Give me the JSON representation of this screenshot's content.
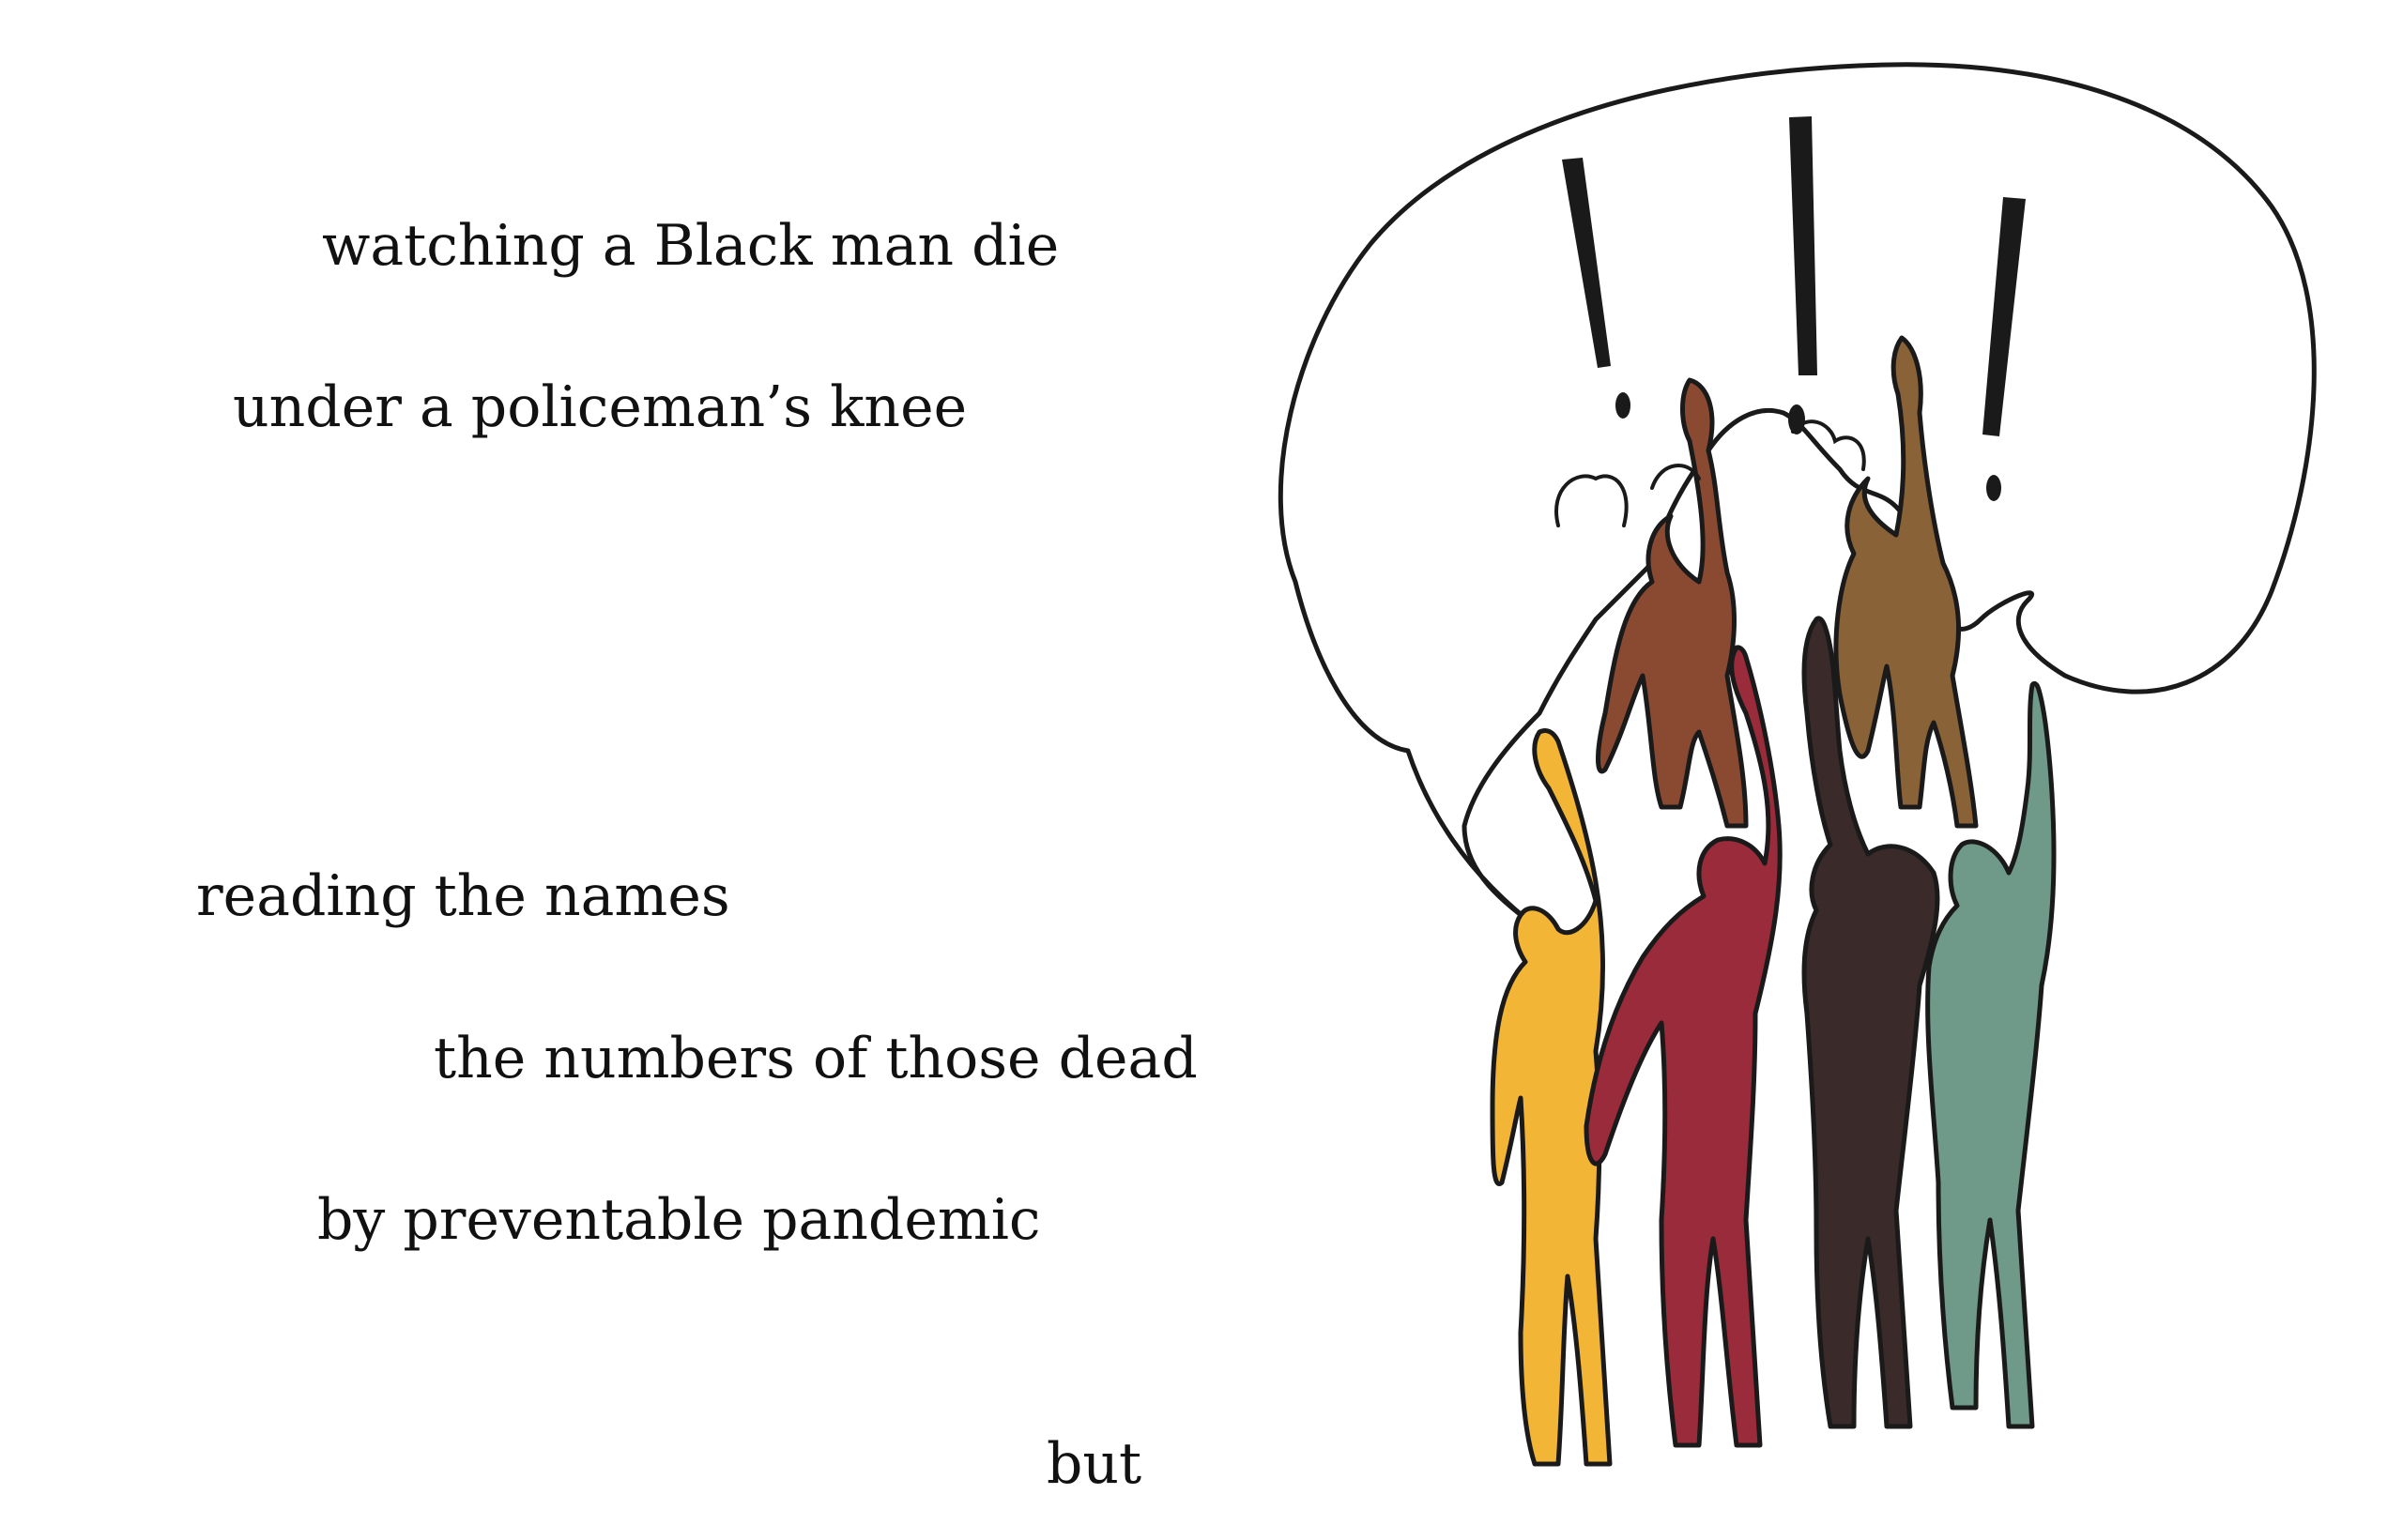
{
  "poem": {
    "lines": [
      "watching a Black man die",
      "under a policeman’s knee",
      "reading the names",
      "the numbers of those dead",
      "by preventable pandemic",
      "but"
    ]
  },
  "illustration": {
    "figure_colors": {
      "yellow": "#f2b536",
      "crimson": "#9a2b3a",
      "black": "#3a2a2a",
      "sage": "#6f9a8a",
      "rust": "#8a4a32",
      "bronze": "#8a6238"
    },
    "outline_color": "#1a1a1a",
    "icons": [
      "exclamation-mark",
      "exclamation-mark",
      "exclamation-mark"
    ]
  }
}
